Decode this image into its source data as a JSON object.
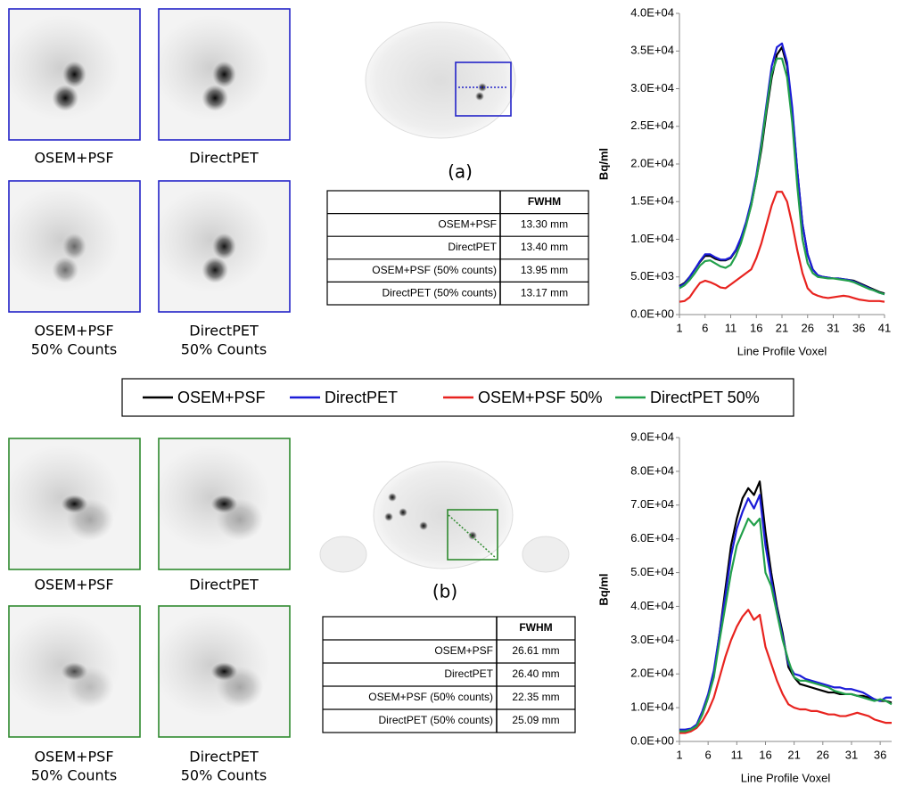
{
  "chart_data": [
    {
      "type": "line",
      "xlabel": "Line Profile Voxel",
      "ylabel": "Bq/ml",
      "x": [
        1,
        2,
        3,
        4,
        5,
        6,
        7,
        8,
        9,
        10,
        11,
        12,
        13,
        14,
        15,
        16,
        17,
        18,
        19,
        20,
        21,
        22,
        23,
        24,
        25,
        26,
        27,
        28,
        29,
        30,
        31,
        32,
        33,
        34,
        35,
        36,
        37,
        38,
        39,
        40,
        41
      ],
      "xlim": [
        1,
        41
      ],
      "xticks": [
        1,
        6,
        11,
        16,
        21,
        26,
        31,
        36,
        41
      ],
      "ylim": [
        0,
        40000
      ],
      "yticks": [
        {
          "value": 0,
          "label": "0.0E+00"
        },
        {
          "value": 5000,
          "label": "5.0E+03"
        },
        {
          "value": 10000,
          "label": "1.0E+04"
        },
        {
          "value": 15000,
          "label": "1.5E+04"
        },
        {
          "value": 20000,
          "label": "2.0E+04"
        },
        {
          "value": 25000,
          "label": "2.5E+04"
        },
        {
          "value": 30000,
          "label": "3.0E+04"
        },
        {
          "value": 35000,
          "label": "3.5E+04"
        },
        {
          "value": 40000,
          "label": "4.0E+04"
        }
      ],
      "series": [
        {
          "name": "OSEM+PSF",
          "color": "#000000",
          "values": [
            3800,
            4200,
            5000,
            6000,
            7000,
            7800,
            7800,
            7400,
            7200,
            7200,
            7500,
            8500,
            10000,
            12000,
            14500,
            18000,
            22000,
            27000,
            31500,
            34500,
            35500,
            33000,
            27000,
            19000,
            12000,
            8000,
            6000,
            5200,
            5000,
            4900,
            4800,
            4800,
            4700,
            4600,
            4500,
            4200,
            3900,
            3600,
            3300,
            3000,
            2800
          ]
        },
        {
          "name": "DirectPET",
          "color": "#1c1cd8",
          "values": [
            3700,
            4100,
            5000,
            6000,
            7100,
            8000,
            8000,
            7600,
            7300,
            7300,
            7600,
            8600,
            10200,
            12300,
            15000,
            18500,
            23000,
            28000,
            33000,
            35500,
            36000,
            33500,
            27500,
            19000,
            12000,
            8000,
            6000,
            5200,
            5000,
            4900,
            4800,
            4800,
            4700,
            4600,
            4400,
            4100,
            3800,
            3500,
            3200,
            2900,
            2700
          ]
        },
        {
          "name": "OSEM+PSF 50%",
          "color": "#e8231f",
          "values": [
            1700,
            1800,
            2300,
            3300,
            4200,
            4500,
            4300,
            4000,
            3600,
            3500,
            4000,
            4500,
            5000,
            5500,
            6000,
            7500,
            9500,
            12000,
            14500,
            16300,
            16300,
            15000,
            12000,
            8500,
            5500,
            3500,
            2800,
            2500,
            2300,
            2200,
            2300,
            2400,
            2500,
            2400,
            2200,
            2000,
            1900,
            1800,
            1800,
            1800,
            1700
          ]
        },
        {
          "name": "DirectPET 50%",
          "color": "#22a04b",
          "values": [
            3500,
            3900,
            4600,
            5500,
            6500,
            7100,
            7200,
            6800,
            6400,
            6200,
            6600,
            7800,
            9500,
            11800,
            14500,
            18000,
            22500,
            27500,
            32000,
            34000,
            34000,
            31500,
            25500,
            17000,
            10000,
            6800,
            5500,
            5000,
            4900,
            4800,
            4800,
            4700,
            4600,
            4500,
            4300,
            4000,
            3700,
            3400,
            3200,
            2900,
            2700
          ]
        }
      ]
    },
    {
      "type": "line",
      "xlabel": "Line Profile Voxel",
      "ylabel": "Bq/ml",
      "x": [
        1,
        2,
        3,
        4,
        5,
        6,
        7,
        8,
        9,
        10,
        11,
        12,
        13,
        14,
        15,
        16,
        17,
        18,
        19,
        20,
        21,
        22,
        23,
        24,
        25,
        26,
        27,
        28,
        29,
        30,
        31,
        32,
        33,
        34,
        35,
        36,
        37,
        38
      ],
      "xlim": [
        1,
        38
      ],
      "xticks": [
        1,
        6,
        11,
        16,
        21,
        26,
        31,
        36
      ],
      "ylim": [
        0,
        90000
      ],
      "yticks": [
        {
          "value": 0,
          "label": "0.0E+00"
        },
        {
          "value": 10000,
          "label": "1.0E+04"
        },
        {
          "value": 20000,
          "label": "2.0E+04"
        },
        {
          "value": 30000,
          "label": "3.0E+04"
        },
        {
          "value": 40000,
          "label": "4.0E+04"
        },
        {
          "value": 50000,
          "label": "5.0E+04"
        },
        {
          "value": 60000,
          "label": "6.0E+04"
        },
        {
          "value": 70000,
          "label": "7.0E+04"
        },
        {
          "value": 80000,
          "label": "8.0E+04"
        },
        {
          "value": 90000,
          "label": "9.0E+04"
        }
      ],
      "series": [
        {
          "color": "#000000",
          "values": [
            3000,
            3300,
            3500,
            4500,
            8000,
            13000,
            20000,
            32000,
            45000,
            58000,
            66000,
            72000,
            75000,
            73000,
            77000,
            62000,
            50000,
            40000,
            32000,
            22000,
            19000,
            17000,
            16500,
            16000,
            15500,
            15000,
            14500,
            14500,
            14000,
            14000,
            14000,
            13500,
            13500,
            13000,
            12500,
            12000,
            12000,
            11500
          ]
        },
        {
          "color": "#1c1cd8",
          "values": [
            3500,
            3500,
            3800,
            5000,
            9000,
            14000,
            21000,
            32000,
            43000,
            55000,
            63000,
            68000,
            72000,
            69000,
            73000,
            58000,
            48000,
            39000,
            31000,
            23000,
            20000,
            19500,
            18500,
            18000,
            17500,
            17000,
            16500,
            16000,
            16000,
            15500,
            15500,
            15000,
            14500,
            13500,
            12500,
            12000,
            13000,
            13000
          ]
        },
        {
          "color": "#e8231f",
          "values": [
            2500,
            2500,
            3000,
            4000,
            6000,
            9000,
            13000,
            19000,
            25000,
            30000,
            34000,
            37000,
            39000,
            36000,
            37500,
            28000,
            23000,
            18000,
            14000,
            11000,
            10000,
            9500,
            9500,
            9000,
            9000,
            8500,
            8000,
            8000,
            7500,
            7500,
            8000,
            8500,
            8000,
            7500,
            6500,
            6000,
            5500,
            5500
          ]
        },
        {
          "color": "#22a04b",
          "values": [
            3000,
            3000,
            3500,
            4500,
            8000,
            13000,
            19000,
            30000,
            40000,
            50000,
            58000,
            62000,
            66000,
            64000,
            66000,
            50000,
            46000,
            38000,
            30000,
            24000,
            19000,
            18000,
            18000,
            17500,
            17000,
            16500,
            16000,
            15000,
            14500,
            14000,
            14000,
            13500,
            13000,
            12500,
            12000,
            12500,
            12000,
            11000
          ]
        }
      ]
    }
  ],
  "panels": [
    {
      "label": "(a)",
      "captions": [
        [
          "OSEM+PSF"
        ],
        [
          "DirectPET"
        ],
        [
          "OSEM+PSF",
          "50% Counts"
        ],
        [
          "DirectPET",
          "50% Counts"
        ]
      ],
      "table": {
        "header": "FWHM",
        "rows": [
          [
            "OSEM+PSF",
            "13.30 mm"
          ],
          [
            "DirectPET",
            "13.40 mm"
          ],
          [
            "OSEM+PSF (50% counts)",
            "13.95 mm"
          ],
          [
            "DirectPET (50% counts)",
            "13.17 mm"
          ]
        ]
      }
    },
    {
      "label": "(b)",
      "captions": [
        [
          "OSEM+PSF"
        ],
        [
          "DirectPET"
        ],
        [
          "OSEM+PSF",
          "50% Counts"
        ],
        [
          "DirectPET",
          "50% Counts"
        ]
      ],
      "table": {
        "header": "FWHM",
        "rows": [
          [
            "OSEM+PSF",
            "26.61 mm"
          ],
          [
            "DirectPET",
            "26.40 mm"
          ],
          [
            "OSEM+PSF (50% counts)",
            "22.35 mm"
          ],
          [
            "DirectPET (50% counts)",
            "25.09 mm"
          ]
        ]
      }
    }
  ]
}
